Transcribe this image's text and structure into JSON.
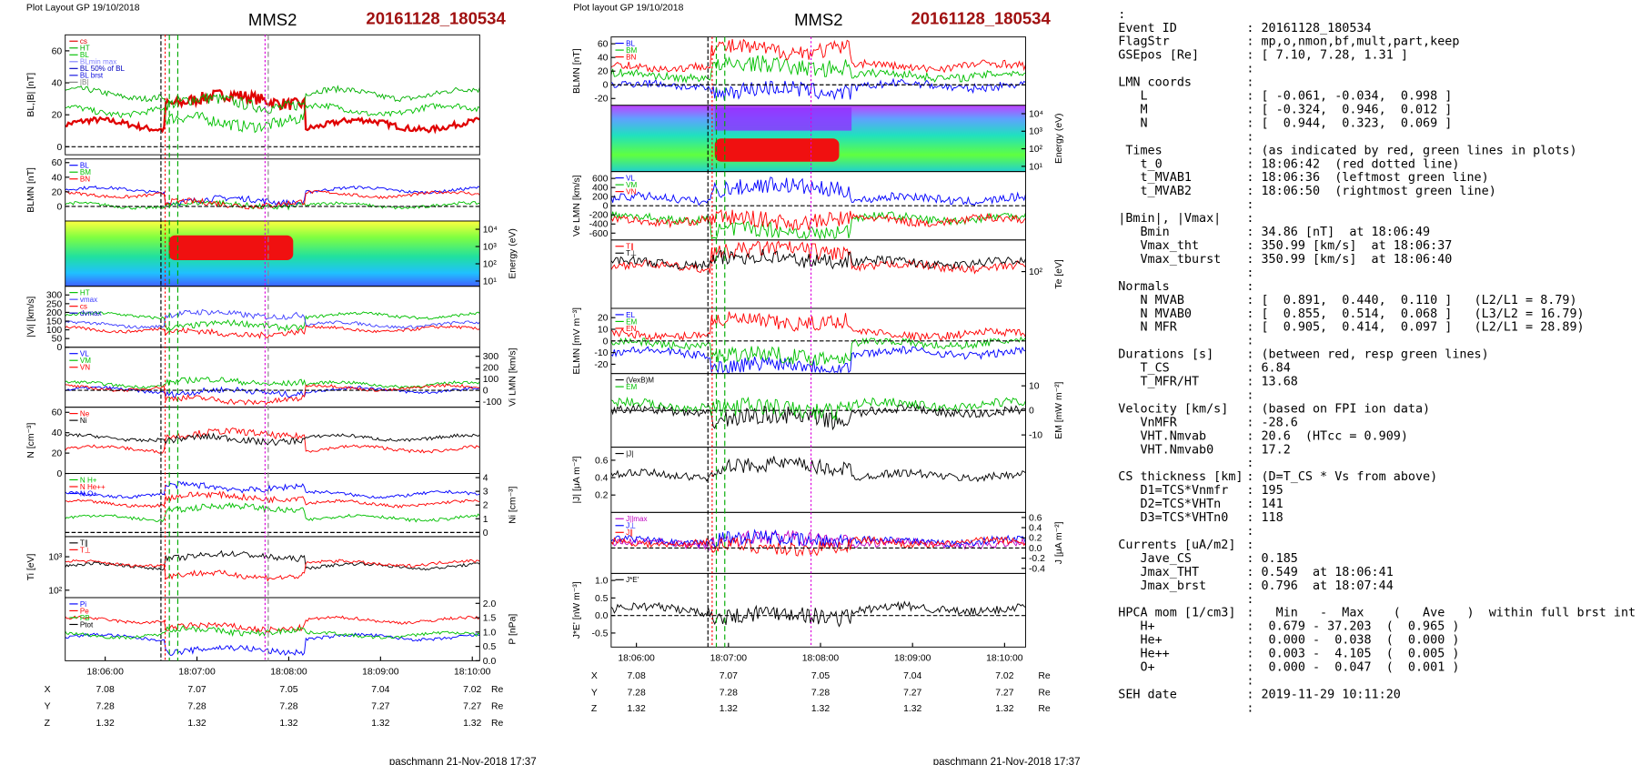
{
  "plots": [
    {
      "header": "Plot Layout GP 19/10/2018",
      "title": "MMS2",
      "event": "20161128_180534",
      "footer": "paschmann 21-Nov-2018 17:37",
      "xticks": [
        "18:06:00",
        "18:07:00",
        "18:08:00",
        "18:09:00",
        "18:10:00"
      ],
      "positions": [
        {
          "label": "X",
          "values": [
            7.08,
            7.07,
            7.05,
            7.04,
            7.02
          ],
          "unit": "Re"
        },
        {
          "label": "Y",
          "values": [
            7.28,
            7.28,
            7.28,
            7.27,
            7.27
          ],
          "unit": "Re"
        },
        {
          "label": "Z",
          "values": [
            1.32,
            1.32,
            1.32,
            1.32,
            1.32
          ],
          "unit": "Re"
        }
      ],
      "panels": [
        {
          "ylabel": "BL,|B| [nT]",
          "ylim": [
            -5,
            70
          ],
          "yticks": [
            0,
            20,
            40,
            60
          ],
          "legend": [
            {
              "name": "cs",
              "color": "#e00000"
            },
            {
              "name": "HT",
              "color": "#00b000"
            },
            {
              "name": "BL",
              "color": "#00c000"
            },
            {
              "name": "BLmin max",
              "color": "#8080ff"
            },
            {
              "name": "BL 50% of BL",
              "color": "#0000c0"
            },
            {
              "name": "BL brst",
              "color": "#1010e0"
            },
            {
              "name": "|B|",
              "color": "#808080"
            }
          ]
        },
        {
          "ylabel": "BLMN [nT]",
          "ylim": [
            -20,
            65
          ],
          "yticks": [
            0,
            20,
            40,
            60
          ],
          "legend": [
            {
              "name": "BL",
              "color": "#0000ff"
            },
            {
              "name": "BM",
              "color": "#00c000"
            },
            {
              "name": "BN",
              "color": "#ff0000"
            }
          ]
        },
        {
          "ylabel": "Energy (eV)",
          "log": true,
          "spectrogram": true,
          "ylim": [
            5,
            30000
          ],
          "yticks": [
            {
              "value": 10,
              "label": "10¹"
            },
            {
              "value": 100,
              "label": "10²"
            },
            {
              "value": 1000,
              "label": "10³"
            },
            {
              "value": 10000,
              "label": "10⁴"
            }
          ]
        },
        {
          "ylabel": "|Vi| [km/s]",
          "ylim": [
            0,
            350
          ],
          "yticks": [
            0,
            50,
            100,
            150,
            200,
            250,
            300
          ],
          "legend": [
            {
              "name": "HT",
              "color": "#00c000"
            },
            {
              "name": "vmax",
              "color": "#4040ff"
            },
            {
              "name": "cs",
              "color": "#ff0000"
            },
            {
              "name": "dvmax",
              "color": "#0000c0"
            }
          ]
        },
        {
          "ylabel": "Vi LMN [km/s]",
          "ylim": [
            -150,
            380
          ],
          "yticks": [
            -100,
            0,
            100,
            200,
            300
          ],
          "legend": [
            {
              "name": "VL",
              "color": "#0000ff"
            },
            {
              "name": "VM",
              "color": "#00c000"
            },
            {
              "name": "VN",
              "color": "#ff0000"
            }
          ]
        },
        {
          "ylabel": "N [cm⁻³]",
          "ylim": [
            0,
            65
          ],
          "yticks": [
            0,
            20,
            40,
            60
          ],
          "legend": [
            {
              "name": "Ne",
              "color": "#ff0000"
            },
            {
              "name": "Ni",
              "color": "#000000"
            }
          ]
        },
        {
          "ylabel": "Ni [cm⁻³]",
          "ylim": [
            -0.3,
            4.3
          ],
          "yticks": [
            0,
            1,
            2,
            3,
            4
          ],
          "legend": [
            {
              "name": "N H+",
              "color": "#00c000"
            },
            {
              "name": "N He++",
              "color": "#ff0000"
            },
            {
              "name": "N O+",
              "color": "#0000ff"
            }
          ]
        },
        {
          "ylabel": "Ti [eV]",
          "log": true,
          "ylim": [
            60,
            4000
          ],
          "yticks": [
            {
              "value": 100,
              "label": "10²"
            },
            {
              "value": 1000,
              "label": "10³"
            }
          ],
          "legend": [
            {
              "name": "T∥",
              "color": "#000000"
            },
            {
              "name": "T⊥",
              "color": "#ff0000"
            }
          ]
        },
        {
          "ylabel": "P [nPa]",
          "ylim": [
            0,
            2.2
          ],
          "yticks": [
            {
              "value": 0,
              "label": "0.0"
            },
            {
              "value": 0.5,
              "label": "0.5"
            },
            {
              "value": 1,
              "label": "1.0"
            },
            {
              "value": 1.5,
              "label": "1.5"
            },
            {
              "value": 2,
              "label": "2.0"
            }
          ],
          "legend": [
            {
              "name": "Pi",
              "color": "#0000ff"
            },
            {
              "name": "Pe",
              "color": "#ff0000"
            },
            {
              "name": "PB",
              "color": "#00c000"
            },
            {
              "name": "Ptot",
              "color": "#000000"
            }
          ]
        }
      ]
    },
    {
      "header": "Plot layout GP 19/10/2018",
      "title": "MMS2",
      "event": "20161128_180534",
      "footer": "paschmann 21-Nov-2018 17:37",
      "xticks": [
        "18:06:00",
        "18:07:00",
        "18:08:00",
        "18:09:00",
        "18:10:00"
      ],
      "positions": [
        {
          "label": "X",
          "values": [
            7.08,
            7.07,
            7.05,
            7.04,
            7.02
          ],
          "unit": "Re"
        },
        {
          "label": "Y",
          "values": [
            7.28,
            7.28,
            7.28,
            7.27,
            7.27
          ],
          "unit": "Re"
        },
        {
          "label": "Z",
          "values": [
            1.32,
            1.32,
            1.32,
            1.32,
            1.32
          ],
          "unit": "Re"
        }
      ],
      "panels": [
        {
          "ylabel": "BLMN [nT]",
          "ylim": [
            -30,
            70
          ],
          "yticks": [
            -20,
            0,
            20,
            40,
            60
          ],
          "legend": [
            {
              "name": "BL",
              "color": "#0000ff"
            },
            {
              "name": "BM",
              "color": "#00c000"
            },
            {
              "name": "BN",
              "color": "#ff0000"
            }
          ]
        },
        {
          "ylabel": "Energy (eV)",
          "log": true,
          "spectrogram": true,
          "ylim": [
            5,
            30000
          ],
          "yticks": [
            {
              "value": 10,
              "label": "10¹"
            },
            {
              "value": 100,
              "label": "10²"
            },
            {
              "value": 1000,
              "label": "10³"
            },
            {
              "value": 10000,
              "label": "10⁴"
            }
          ]
        },
        {
          "ylabel": "Ve LMN [km/s]",
          "ylim": [
            -750,
            750
          ],
          "yticks": [
            -600,
            -400,
            -200,
            0,
            200,
            400,
            600
          ],
          "legend": [
            {
              "name": "VL",
              "color": "#0000ff"
            },
            {
              "name": "VM",
              "color": "#00c000"
            },
            {
              "name": "VN",
              "color": "#ff0000"
            }
          ]
        },
        {
          "ylabel": "Te [eV]",
          "log": true,
          "ylim": [
            20,
            400
          ],
          "yticks": [
            {
              "value": 100,
              "label": "10²"
            }
          ],
          "legend": [
            {
              "name": "T∥",
              "color": "#ff0000"
            },
            {
              "name": "T⊥",
              "color": "#000000"
            }
          ]
        },
        {
          "ylabel": "ELMN [mV m⁻³]",
          "ylim": [
            -28,
            28
          ],
          "yticks": [
            -20,
            -10,
            0,
            10,
            20
          ],
          "legend": [
            {
              "name": "EL",
              "color": "#0000ff"
            },
            {
              "name": "EM",
              "color": "#00c000"
            },
            {
              "name": "EN",
              "color": "#ff0000"
            }
          ]
        },
        {
          "ylabel": "EM [mW m⁻²]",
          "ylim": [
            -15,
            15
          ],
          "yticks": [
            -10,
            0,
            10
          ],
          "legend": [
            {
              "name": "(VexB)M",
              "color": "#000000"
            },
            {
              "name": "EM",
              "color": "#00c000"
            }
          ]
        },
        {
          "ylabel": "|J| [μA m⁻²]",
          "ylim": [
            0,
            0.75
          ],
          "yticks": [
            0.2,
            0.4,
            0.6
          ],
          "legend": [
            {
              "name": "|J|",
              "color": "#000000"
            }
          ]
        },
        {
          "ylabel": "J [μA m⁻²]",
          "ylim": [
            -0.5,
            0.7
          ],
          "yticks": [
            {
              "value": -0.4,
              "label": "-0.4"
            },
            {
              "value": -0.2,
              "label": "-0.2"
            },
            {
              "value": 0,
              "label": "0.0"
            },
            {
              "value": 0.2,
              "label": "0.2"
            },
            {
              "value": 0.4,
              "label": "0.4"
            },
            {
              "value": 0.6,
              "label": "0.6"
            }
          ],
          "legend": [
            {
              "name": "J||max",
              "color": "#c000c0"
            },
            {
              "name": "J⊥",
              "color": "#0000ff"
            },
            {
              "name": "J∥",
              "color": "#ff0000"
            }
          ]
        },
        {
          "ylabel": "J*E' [nW m⁻³]",
          "ylim": [
            -0.9,
            1.2
          ],
          "yticks": [
            -0.5,
            {
              "value": 0,
              "label": "0.0"
            },
            0.5,
            {
              "value": 1,
              "label": "1.0"
            }
          ],
          "legend": [
            {
              "name": "J*E'",
              "color": "#000000"
            }
          ]
        }
      ]
    }
  ],
  "info": [
    {
      "key": ":"
    },
    {
      "key": "Event ID",
      "value": ": 20161128_180534"
    },
    {
      "key": "FlagStr",
      "value": ": mp,o,nmon,bf,mult,part,keep"
    },
    {
      "key": "GSEpos [Re]",
      "value": ": [ 7.10, 7.28, 1.31 ]"
    },
    {
      "value": ":"
    },
    {
      "key": "LMN coords",
      "value": ":"
    },
    {
      "key": "   L",
      "value": ": [ -0.061, -0.034,  0.998 ]"
    },
    {
      "key": "   M",
      "value": ": [ -0.324,  0.946,  0.012 ]"
    },
    {
      "key": "   N",
      "value": ": [  0.944,  0.323,  0.069 ]"
    },
    {
      "value": ":"
    },
    {
      "key": " Times",
      "value": ": (as indicated by red, green lines in plots)"
    },
    {
      "key": "   t_0",
      "value": ": 18:06:42  (red dotted line)"
    },
    {
      "key": "   t_MVAB1",
      "value": ": 18:06:36  (leftmost green line)"
    },
    {
      "key": "   t_MVAB2",
      "value": ": 18:06:50  (rightmost green line)"
    },
    {
      "value": ":"
    },
    {
      "key": "|Bmin|, |Vmax|",
      "value": ":"
    },
    {
      "key": "   Bmin",
      "value": ": 34.86 [nT]  at 18:06:49"
    },
    {
      "key": "   Vmax_tht",
      "value": ": 350.99 [km/s]  at 18:06:37"
    },
    {
      "key": "   Vmax_tburst",
      "value": ": 350.99 [km/s]  at 18:06:40"
    },
    {
      "value": ":"
    },
    {
      "key": "Normals",
      "value": ":"
    },
    {
      "key": "   N MVAB",
      "value": ": [  0.891,  0.440,  0.110 ]   (L2/L1 = 8.79)"
    },
    {
      "key": "   N MVAB0",
      "value": ": [  0.855,  0.514,  0.068 ]   (L3/L2 = 16.79)"
    },
    {
      "key": "   N MFR",
      "value": ": [  0.905,  0.414,  0.097 ]   (L2/L1 = 28.89)"
    },
    {
      "value": ":"
    },
    {
      "key": "Durations [s]",
      "value": ": (between red, resp green lines)"
    },
    {
      "key": "   T_CS",
      "value": ": 6.84"
    },
    {
      "key": "   T_MFR/HT",
      "value": ": 13.68"
    },
    {
      "value": ":"
    },
    {
      "key": "Velocity [km/s]",
      "value": ": (based on FPI ion data)"
    },
    {
      "key": "   VnMFR",
      "value": ": -28.6"
    },
    {
      "key": "   VHT.Nmvab",
      "value": ": 20.6  (HTcc = 0.909)"
    },
    {
      "key": "   VHT.Nmvab0",
      "value": ": 17.2"
    },
    {
      "value": ":"
    },
    {
      "key": "CS thickness [km]",
      "value": ": (D=T_CS * Vs from above)"
    },
    {
      "key": "   D1=TCS*Vnmfr",
      "value": ": 195"
    },
    {
      "key": "   D2=TCS*VHTn",
      "value": ": 141"
    },
    {
      "key": "   D3=TCS*VHTn0",
      "value": ": 118"
    },
    {
      "value": ":"
    },
    {
      "key": "Currents [uA/m2]",
      "value": ":"
    },
    {
      "key": "   Jave_CS",
      "value": ": 0.185"
    },
    {
      "key": "   Jmax_THT",
      "value": ": 0.549  at 18:06:41"
    },
    {
      "key": "   Jmax_brst",
      "value": ": 0.796  at 18:07:44"
    },
    {
      "value": ":"
    },
    {
      "key": "HPCA mom [1/cm3]",
      "value": ":   Min   -  Max    (   Ave   )  within full brst int"
    },
    {
      "key": "   H+",
      "value": ":  0.679 - 37.203  (  0.965 )"
    },
    {
      "key": "   He+",
      "value": ":  0.000 -  0.038  (  0.000 )"
    },
    {
      "key": "   He++",
      "value": ":  0.003 -  4.105  (  0.005 )"
    },
    {
      "key": "   O+",
      "value": ":  0.000 -  0.047  (  0.001 )"
    },
    {
      "value": ":"
    },
    {
      "key": "SEH date",
      "value": ": 2019-11-29 10:11:20"
    },
    {
      "value": ":"
    }
  ]
}
